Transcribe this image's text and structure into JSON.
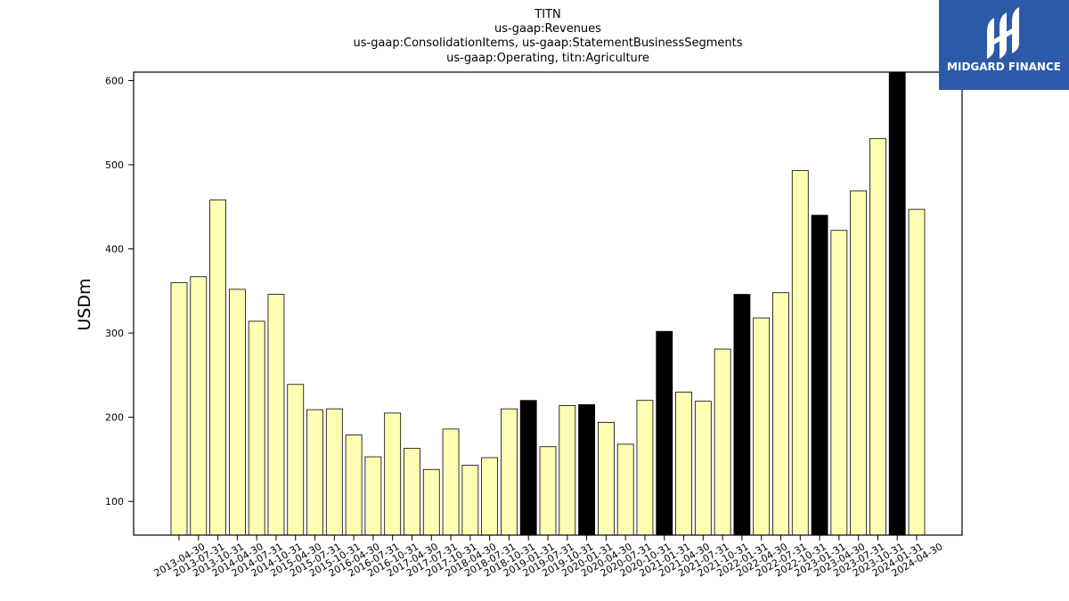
{
  "logo": {
    "text": "MIDGARD FINANCE"
  },
  "colors": {
    "regular": "#ffffb3",
    "highlight": "#000000",
    "edge": "#000000",
    "logo_bg": "#2c5aa8"
  },
  "chart_data": {
    "type": "bar",
    "title_lines": [
      "TITN",
      "us-gaap:Revenues",
      "us-gaap:ConsolidationItems, us-gaap:StatementBusinessSegments",
      "us-gaap:Operating, titn:Agriculture"
    ],
    "ylabel": "USDm",
    "xlabel": "",
    "ylim": [
      60,
      610
    ],
    "yticks": [
      100,
      200,
      300,
      400,
      500,
      600
    ],
    "grid": false,
    "categories": [
      "2013-04-30",
      "2013-07-31",
      "2013-10-31",
      "2014-04-30",
      "2014-07-31",
      "2014-10-31",
      "2015-04-30",
      "2015-07-31",
      "2015-10-31",
      "2016-04-30",
      "2016-07-31",
      "2016-10-31",
      "2017-04-30",
      "2017-07-31",
      "2017-10-31",
      "2018-04-30",
      "2018-07-31",
      "2018-10-31",
      "2019-01-31",
      "2019-07-31",
      "2019-10-31",
      "2020-01-31",
      "2020-04-30",
      "2020-07-31",
      "2020-10-31",
      "2021-01-31",
      "2021-04-30",
      "2021-07-31",
      "2021-10-31",
      "2022-01-31",
      "2022-04-30",
      "2022-07-31",
      "2022-10-31",
      "2023-01-31",
      "2023-04-30",
      "2023-07-31",
      "2023-10-31",
      "2024-01-31",
      "2024-04-30"
    ],
    "values": [
      360,
      367,
      458,
      352,
      314,
      346,
      239,
      209,
      210,
      179,
      153,
      205,
      163,
      138,
      186,
      143,
      152,
      210,
      220,
      165,
      214,
      215,
      194,
      168,
      220,
      302,
      230,
      219,
      281,
      346,
      318,
      348,
      493,
      440,
      422,
      469,
      531,
      610,
      447
    ],
    "highlighted": [
      false,
      false,
      false,
      false,
      false,
      false,
      false,
      false,
      false,
      false,
      false,
      false,
      false,
      false,
      false,
      false,
      false,
      false,
      true,
      false,
      false,
      true,
      false,
      false,
      false,
      true,
      false,
      false,
      false,
      true,
      false,
      false,
      false,
      true,
      false,
      false,
      false,
      true,
      false
    ]
  }
}
